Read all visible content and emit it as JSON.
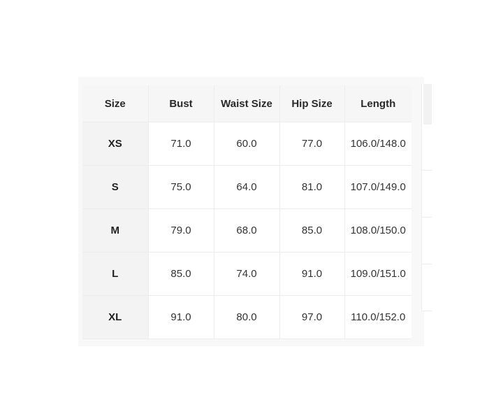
{
  "size_chart": {
    "headers": [
      "Size",
      "Bust",
      "Waist Size",
      "Hip Size",
      "Length"
    ],
    "rows": [
      {
        "size": "XS",
        "bust": "71.0",
        "waist": "60.0",
        "hip": "77.0",
        "length": "106.0/148.0"
      },
      {
        "size": "S",
        "bust": "75.0",
        "waist": "64.0",
        "hip": "81.0",
        "length": "107.0/149.0"
      },
      {
        "size": "M",
        "bust": "79.0",
        "waist": "68.0",
        "hip": "85.0",
        "length": "108.0/150.0"
      },
      {
        "size": "L",
        "bust": "85.0",
        "waist": "74.0",
        "hip": "91.0",
        "length": "109.0/151.0"
      },
      {
        "size": "XL",
        "bust": "91.0",
        "waist": "80.0",
        "hip": "97.0",
        "length": "110.0/152.0"
      }
    ]
  },
  "colors": {
    "header_bg": "#f6f6f6",
    "size_column_bg": "#f3f3f3",
    "border": "#ececec",
    "text": "#222222"
  }
}
